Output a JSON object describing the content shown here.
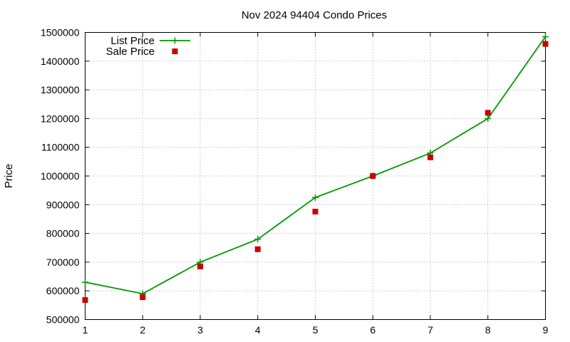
{
  "chart_data": {
    "type": "line",
    "title": "Nov 2024 94404 Condo Prices",
    "xlabel": "",
    "ylabel": "Price",
    "x": [
      1,
      2,
      3,
      4,
      5,
      6,
      7,
      8,
      9
    ],
    "xlim": [
      1,
      9
    ],
    "ylim": [
      500000,
      1500000
    ],
    "x_ticks": [
      "1",
      "2",
      "3",
      "4",
      "5",
      "6",
      "7",
      "8",
      "9"
    ],
    "y_ticks": [
      "500000",
      "600000",
      "700000",
      "800000",
      "900000",
      "1000000",
      "1100000",
      "1200000",
      "1300000",
      "1400000",
      "1500000"
    ],
    "grid": true,
    "legend_position": "top-left",
    "series": [
      {
        "name": "List Price",
        "style": "line-with-plus-markers",
        "color": "#009900",
        "values": [
          630000,
          590000,
          700000,
          780000,
          925000,
          1000000,
          1080000,
          1200000,
          1485000
        ]
      },
      {
        "name": "Sale Price",
        "style": "square-markers",
        "color": "#cc0000",
        "values": [
          568000,
          578000,
          685000,
          745000,
          876000,
          1000000,
          1065000,
          1220000,
          1460000
        ]
      }
    ]
  }
}
